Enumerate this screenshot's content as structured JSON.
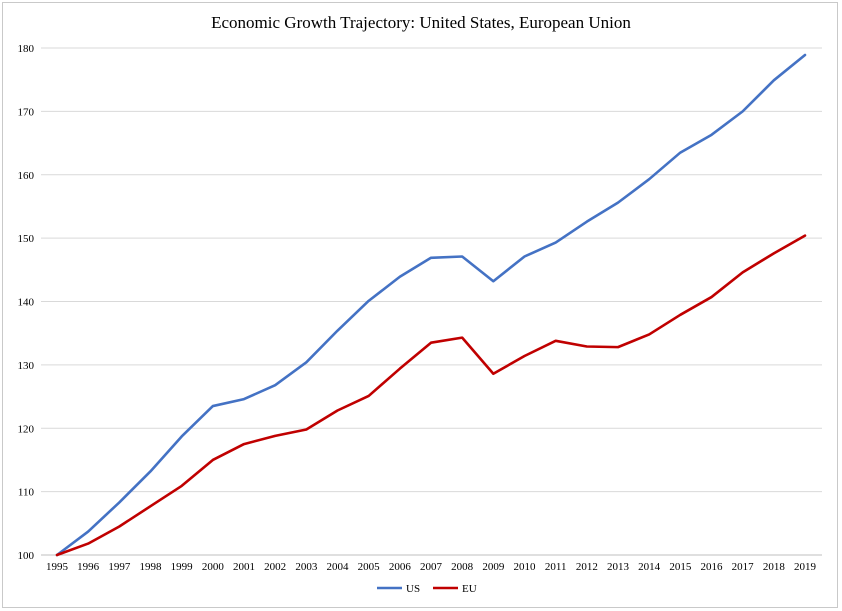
{
  "chart_data": {
    "type": "line",
    "title": "Economic Growth Trajectory: United States, European Union",
    "xlabel": "",
    "ylabel": "",
    "x": [
      "1995",
      "1996",
      "1997",
      "1998",
      "1999",
      "2000",
      "2001",
      "2002",
      "2003",
      "2004",
      "2005",
      "2006",
      "2007",
      "2008",
      "2009",
      "2010",
      "2011",
      "2012",
      "2013",
      "2014",
      "2015",
      "2016",
      "2017",
      "2018",
      "2019"
    ],
    "ylim": [
      100,
      180
    ],
    "yticks": [
      100,
      110,
      120,
      130,
      140,
      150,
      160,
      170,
      180
    ],
    "grid": true,
    "legend_position": "bottom",
    "series": [
      {
        "name": "US",
        "color": "#4472C4",
        "values": [
          100,
          103.7,
          108.3,
          113.2,
          118.7,
          123.5,
          124.6,
          126.8,
          130.4,
          135.4,
          140.1,
          143.9,
          146.9,
          147.1,
          143.2,
          147.1,
          149.3,
          152.6,
          155.6,
          159.3,
          163.5,
          166.3,
          170.0,
          174.9,
          178.9
        ]
      },
      {
        "name": "EU",
        "color": "#C00000",
        "values": [
          100,
          101.8,
          104.5,
          107.7,
          110.9,
          115.0,
          117.5,
          118.8,
          119.8,
          122.8,
          125.1,
          129.4,
          133.5,
          134.3,
          128.6,
          131.4,
          133.8,
          132.9,
          132.8,
          134.8,
          137.9,
          140.7,
          144.6,
          147.6,
          150.4
        ]
      }
    ]
  }
}
